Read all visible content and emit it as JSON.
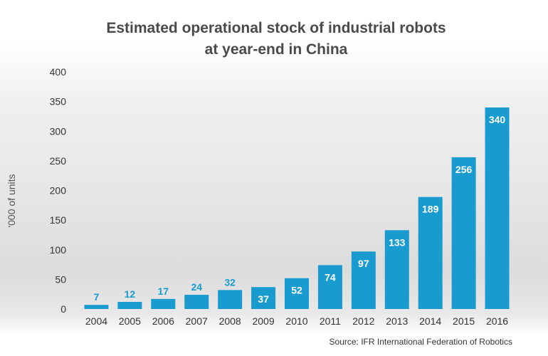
{
  "chart_data": {
    "type": "bar",
    "title_line1": "Estimated operational stock of industrial robots",
    "title_line2": "at year-end in China",
    "ylabel": "'000 of units",
    "xlabel": "",
    "ylim": [
      0,
      400
    ],
    "yticks": [
      0,
      50,
      100,
      150,
      200,
      250,
      300,
      350,
      400
    ],
    "categories": [
      "2004",
      "2005",
      "2006",
      "2007",
      "2008",
      "2009",
      "2010",
      "2011",
      "2012",
      "2013",
      "2014",
      "2015",
      "2016"
    ],
    "values": [
      7,
      12,
      17,
      24,
      32,
      37,
      52,
      74,
      97,
      133,
      189,
      256,
      340
    ],
    "grid": false,
    "bar_color": "#1a9bd0",
    "label_color_inside": "#ffffff",
    "label_color_outside": "#1a9bd0",
    "source": "Source: IFR International Federation of Robotics"
  }
}
